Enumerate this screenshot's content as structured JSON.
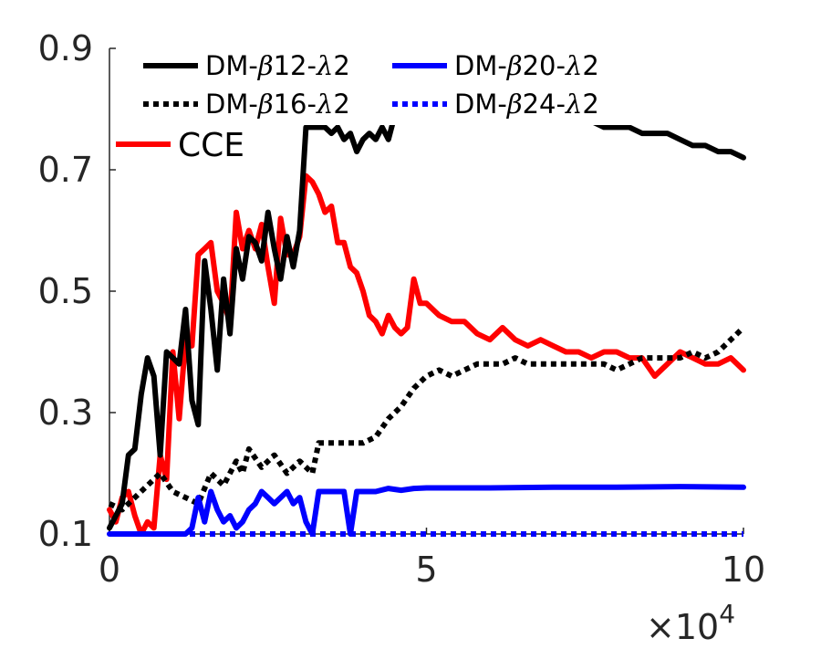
{
  "chart_data": {
    "type": "line",
    "title": "",
    "xlabel": "",
    "ylabel": "",
    "xlim": [
      0,
      100000
    ],
    "ylim": [
      0.1,
      0.9
    ],
    "x_ticks": [
      0,
      50000,
      100000
    ],
    "x_tick_labels": [
      "0",
      "5",
      "10"
    ],
    "x_multiplier": "×10",
    "x_multiplier_exp": "4",
    "y_ticks": [
      0.1,
      0.3,
      0.5,
      0.7,
      0.9
    ],
    "y_tick_labels": [
      "0.1",
      "0.3",
      "0.5",
      "0.7",
      "0.9"
    ],
    "grid": false,
    "legend_position": "top-left",
    "series": [
      {
        "name": "DM-β12-λ2",
        "legend_label": {
          "prefix": "DM-",
          "beta": "β",
          "mid": "12-",
          "lambda": "λ",
          "suffix": "2"
        },
        "color": "#000000",
        "style": "solid",
        "x": [
          0,
          1000,
          2000,
          3000,
          4000,
          5000,
          6000,
          7000,
          8000,
          9000,
          10000,
          11000,
          12000,
          13000,
          14000,
          15000,
          16000,
          17000,
          18000,
          19000,
          20000,
          21000,
          22000,
          23000,
          24000,
          25000,
          26000,
          27000,
          28000,
          29000,
          30000,
          31000,
          32000,
          33000,
          34000,
          35000,
          36000,
          37000,
          38000,
          39000,
          40000,
          41000,
          42000,
          43000,
          44000,
          45000,
          46000,
          47000,
          48000,
          49000,
          50000,
          52000,
          54000,
          56000,
          58000,
          60000,
          62000,
          64000,
          66000,
          68000,
          70000,
          72000,
          74000,
          76000,
          78000,
          80000,
          82000,
          84000,
          86000,
          88000,
          90000,
          92000,
          94000,
          96000,
          98000,
          100000
        ],
        "y": [
          0.11,
          0.13,
          0.15,
          0.23,
          0.24,
          0.33,
          0.39,
          0.36,
          0.23,
          0.4,
          0.39,
          0.38,
          0.47,
          0.32,
          0.28,
          0.55,
          0.47,
          0.37,
          0.52,
          0.43,
          0.57,
          0.52,
          0.59,
          0.58,
          0.55,
          0.63,
          0.57,
          0.52,
          0.59,
          0.54,
          0.6,
          0.77,
          0.77,
          0.77,
          0.77,
          0.76,
          0.77,
          0.75,
          0.76,
          0.73,
          0.75,
          0.76,
          0.75,
          0.77,
          0.75,
          0.79,
          0.8,
          0.8,
          0.8,
          0.8,
          0.8,
          0.8,
          0.8,
          0.79,
          0.79,
          0.79,
          0.79,
          0.79,
          0.79,
          0.79,
          0.78,
          0.78,
          0.78,
          0.78,
          0.77,
          0.77,
          0.77,
          0.76,
          0.76,
          0.76,
          0.75,
          0.74,
          0.74,
          0.73,
          0.73,
          0.72
        ]
      },
      {
        "name": "DM-β16-λ2",
        "legend_label": {
          "prefix": "DM-",
          "beta": "β",
          "mid": "16-",
          "lambda": "λ",
          "suffix": "2"
        },
        "color": "#000000",
        "style": "dotted",
        "x": [
          0,
          2000,
          4000,
          6000,
          8000,
          10000,
          12000,
          14000,
          16000,
          18000,
          20000,
          21000,
          22000,
          24000,
          26000,
          28000,
          30000,
          32000,
          33000,
          35000,
          37000,
          40000,
          42000,
          44000,
          46000,
          48000,
          50000,
          52000,
          54000,
          56000,
          58000,
          60000,
          62000,
          64000,
          66000,
          68000,
          70000,
          72000,
          74000,
          76000,
          78000,
          80000,
          82000,
          84000,
          86000,
          88000,
          90000,
          92000,
          94000,
          96000,
          98000,
          100000
        ],
        "y": [
          0.15,
          0.14,
          0.16,
          0.18,
          0.2,
          0.17,
          0.16,
          0.15,
          0.2,
          0.18,
          0.22,
          0.2,
          0.24,
          0.21,
          0.23,
          0.2,
          0.22,
          0.2,
          0.25,
          0.25,
          0.25,
          0.25,
          0.26,
          0.29,
          0.31,
          0.34,
          0.36,
          0.37,
          0.36,
          0.37,
          0.38,
          0.38,
          0.38,
          0.39,
          0.38,
          0.38,
          0.38,
          0.38,
          0.38,
          0.38,
          0.38,
          0.37,
          0.38,
          0.39,
          0.39,
          0.39,
          0.39,
          0.4,
          0.39,
          0.4,
          0.42,
          0.44
        ]
      },
      {
        "name": "DM-β20-λ2",
        "legend_label": {
          "prefix": "DM-",
          "beta": "β",
          "mid": "20-",
          "lambda": "λ",
          "suffix": "2"
        },
        "color": "#0000ff",
        "style": "solid",
        "x": [
          0,
          5000,
          10000,
          12000,
          13000,
          14000,
          15000,
          16000,
          17000,
          18000,
          19000,
          20000,
          21000,
          22000,
          23000,
          24000,
          25000,
          26000,
          28000,
          29000,
          30000,
          31000,
          32000,
          33000,
          34000,
          36000,
          37000,
          38000,
          39000,
          40000,
          42000,
          44000,
          46000,
          48000,
          50000,
          60000,
          70000,
          80000,
          90000,
          100000
        ],
        "y": [
          0.1,
          0.1,
          0.1,
          0.1,
          0.11,
          0.16,
          0.12,
          0.17,
          0.14,
          0.12,
          0.13,
          0.11,
          0.12,
          0.14,
          0.15,
          0.17,
          0.16,
          0.15,
          0.17,
          0.15,
          0.16,
          0.12,
          0.1,
          0.17,
          0.17,
          0.17,
          0.17,
          0.1,
          0.17,
          0.17,
          0.17,
          0.175,
          0.172,
          0.175,
          0.176,
          0.176,
          0.177,
          0.177,
          0.178,
          0.177
        ]
      },
      {
        "name": "DM-β24-λ2",
        "legend_label": {
          "prefix": "DM-",
          "beta": "β",
          "mid": "24-",
          "lambda": "λ",
          "suffix": "2"
        },
        "color": "#0000ff",
        "style": "dotted",
        "x": [
          0,
          100000
        ],
        "y": [
          0.1,
          0.1
        ]
      },
      {
        "name": "CCE",
        "legend_label": {
          "prefix": "CCE",
          "beta": "",
          "mid": "",
          "lambda": "",
          "suffix": ""
        },
        "color": "#ff0000",
        "style": "solid",
        "x": [
          0,
          1000,
          2000,
          3000,
          4000,
          5000,
          6000,
          7000,
          8000,
          9000,
          10000,
          11000,
          12000,
          13000,
          14000,
          15000,
          16000,
          17000,
          18000,
          19000,
          20000,
          21000,
          22000,
          23000,
          24000,
          25000,
          26000,
          27000,
          28000,
          29000,
          30000,
          31000,
          32000,
          33000,
          34000,
          35000,
          36000,
          37000,
          38000,
          39000,
          40000,
          41000,
          42000,
          43000,
          44000,
          45000,
          46000,
          47000,
          48000,
          49000,
          50000,
          52000,
          54000,
          56000,
          58000,
          60000,
          62000,
          64000,
          66000,
          68000,
          70000,
          72000,
          74000,
          76000,
          78000,
          80000,
          82000,
          84000,
          86000,
          88000,
          90000,
          92000,
          94000,
          96000,
          98000,
          100000
        ],
        "y": [
          0.14,
          0.12,
          0.16,
          0.17,
          0.13,
          0.1,
          0.12,
          0.11,
          0.23,
          0.19,
          0.4,
          0.29,
          0.42,
          0.41,
          0.56,
          0.57,
          0.58,
          0.5,
          0.48,
          0.45,
          0.63,
          0.57,
          0.6,
          0.57,
          0.61,
          0.54,
          0.48,
          0.62,
          0.56,
          0.56,
          0.59,
          0.69,
          0.68,
          0.66,
          0.63,
          0.64,
          0.58,
          0.58,
          0.54,
          0.53,
          0.5,
          0.46,
          0.45,
          0.43,
          0.46,
          0.44,
          0.43,
          0.44,
          0.52,
          0.48,
          0.48,
          0.46,
          0.45,
          0.45,
          0.43,
          0.42,
          0.44,
          0.42,
          0.41,
          0.42,
          0.41,
          0.4,
          0.4,
          0.39,
          0.4,
          0.4,
          0.39,
          0.39,
          0.36,
          0.38,
          0.4,
          0.39,
          0.38,
          0.38,
          0.39,
          0.37
        ]
      }
    ]
  }
}
